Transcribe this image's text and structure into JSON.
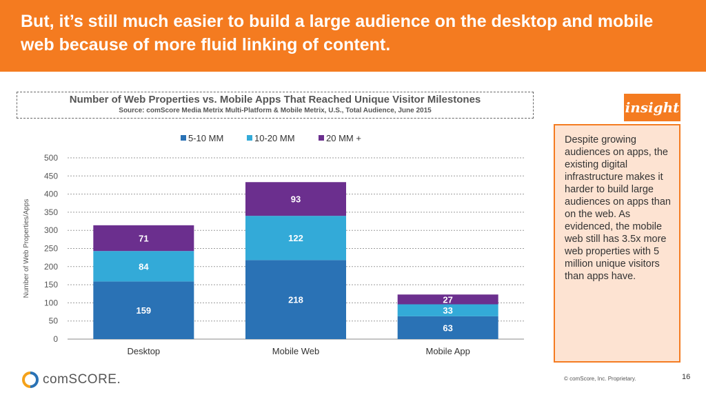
{
  "header": {
    "title": "But, it’s still much easier to build a large audience on the desktop and mobile web because of more fluid linking of content."
  },
  "chart_data": {
    "type": "bar",
    "stacked": true,
    "title": "Number of Web Properties vs. Mobile Apps That Reached Unique Visitor Milestones",
    "source": "Source: comScore Media Metrix Multi-Platform & Mobile Metrix, U.S., Total Audience, June 2015",
    "categories": [
      "Desktop",
      "Mobile Web",
      "Mobile App"
    ],
    "series": [
      {
        "name": "5-10 MM",
        "color": "#2a72b5",
        "values": [
          159,
          218,
          63
        ]
      },
      {
        "name": "10-20 MM",
        "color": "#33aad8",
        "values": [
          84,
          122,
          33
        ]
      },
      {
        "name": "20 MM +",
        "color": "#6b2f8e",
        "values": [
          71,
          93,
          27
        ]
      }
    ],
    "ylabel": "Number of Web Properties/Apps",
    "xlabel": "",
    "ylim": [
      0,
      500
    ],
    "yticks": [
      0,
      50,
      100,
      150,
      200,
      250,
      300,
      350,
      400,
      450,
      500
    ],
    "grid": true,
    "legend_position": "top-center"
  },
  "insight": {
    "tab_label": "insight",
    "text": "Despite growing audiences on apps, the existing digital infrastructure makes it harder to build large audiences on apps than on the web. As evidenced, the mobile web still has 3.5x more web properties with 5 million unique visitors than apps have."
  },
  "footer": {
    "logo_text": "comSCORE.",
    "copyright": "© comScore, Inc.  Proprietary.",
    "page_number": "16"
  },
  "colors": {
    "accent": "#f47b20",
    "insight_bg": "#fde3d2"
  }
}
